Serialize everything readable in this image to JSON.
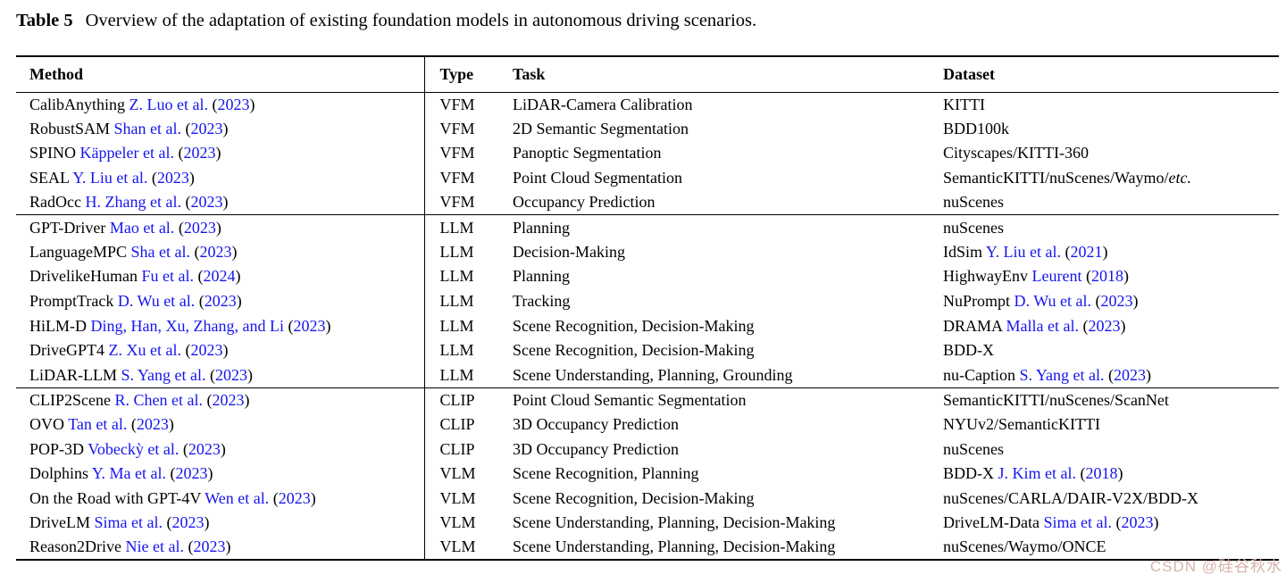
{
  "title": {
    "label": "Table 5",
    "text": "Overview of the adaptation of existing foundation models in autonomous driving scenarios."
  },
  "watermark": "CSDN @硅谷秋水",
  "colors": {
    "link": "#1515ef",
    "text": "#000000",
    "watermark": "#d8b2aa"
  },
  "table": {
    "headers": {
      "method": "Method",
      "type": "Type",
      "task": "Task",
      "dataset": "Dataset"
    },
    "groups": [
      {
        "rows": [
          {
            "method": {
              "name": "CalibAnything",
              "cite": "Z. Luo et al.",
              "year": "2023"
            },
            "type": "VFM",
            "task": "LiDAR-Camera Calibration",
            "dataset": {
              "name": "KITTI"
            }
          },
          {
            "method": {
              "name": "RobustSAM",
              "cite": "Shan et al.",
              "year": "2023"
            },
            "type": "VFM",
            "task": "2D Semantic Segmentation",
            "dataset": {
              "name": "BDD100k"
            }
          },
          {
            "method": {
              "name": "SPINO",
              "cite": "Käppeler et al.",
              "year": "2023"
            },
            "type": "VFM",
            "task": "Panoptic Segmentation",
            "dataset": {
              "name": "Cityscapes/KITTI-360"
            }
          },
          {
            "method": {
              "name": "SEAL",
              "cite": "Y. Liu et al.",
              "year": "2023"
            },
            "type": "VFM",
            "task": "Point Cloud Segmentation",
            "dataset": {
              "name": "SemanticKITTI/nuScenes/Waymo/",
              "italic_suffix": "etc."
            }
          },
          {
            "method": {
              "name": "RadOcc",
              "cite": "H. Zhang et al.",
              "year": "2023"
            },
            "type": "VFM",
            "task": "Occupancy Prediction",
            "dataset": {
              "name": "nuScenes"
            }
          }
        ]
      },
      {
        "rows": [
          {
            "method": {
              "name": "GPT-Driver",
              "cite": "Mao et al.",
              "year": "2023"
            },
            "type": "LLM",
            "task": "Planning",
            "dataset": {
              "name": "nuScenes"
            }
          },
          {
            "method": {
              "name": "LanguageMPC",
              "cite": "Sha et al.",
              "year": "2023"
            },
            "type": "LLM",
            "task": "Decision-Making",
            "dataset": {
              "name": "IdSim",
              "cite": "Y. Liu et al.",
              "year": "2021"
            }
          },
          {
            "method": {
              "name": "DrivelikeHuman",
              "cite": "Fu et al.",
              "year": "2024"
            },
            "type": "LLM",
            "task": "Planning",
            "dataset": {
              "name": "HighwayEnv",
              "cite": "Leurent",
              "year": "2018"
            }
          },
          {
            "method": {
              "name": "PromptTrack",
              "cite": "D. Wu et al.",
              "year": "2023"
            },
            "type": "LLM",
            "task": "Tracking",
            "dataset": {
              "name": "NuPrompt",
              "cite": "D. Wu et al.",
              "year": "2023"
            }
          },
          {
            "method": {
              "name": "HiLM-D",
              "cite": "Ding, Han, Xu, Zhang, and Li",
              "year": "2023"
            },
            "type": "LLM",
            "task": "Scene Recognition, Decision-Making",
            "dataset": {
              "name": "DRAMA",
              "cite": "Malla et al.",
              "year": "2023"
            }
          },
          {
            "method": {
              "name": "DriveGPT4",
              "cite": "Z. Xu et al.",
              "year": "2023"
            },
            "type": "LLM",
            "task": "Scene Recognition, Decision-Making",
            "dataset": {
              "name": "BDD-X"
            }
          },
          {
            "method": {
              "name": "LiDAR-LLM",
              "cite": "S. Yang et al.",
              "year": "2023"
            },
            "type": "LLM",
            "task": "Scene Understanding, Planning, Grounding",
            "dataset": {
              "name": "nu-Caption",
              "cite": "S. Yang et al.",
              "year": "2023"
            }
          }
        ]
      },
      {
        "rows": [
          {
            "method": {
              "name": "CLIP2Scene",
              "cite": "R. Chen et al.",
              "year": "2023"
            },
            "type": "CLIP",
            "task": "Point Cloud Semantic Segmentation",
            "dataset": {
              "name": "SemanticKITTI/nuScenes/ScanNet"
            }
          },
          {
            "method": {
              "name": "OVO",
              "cite": "Tan et al.",
              "year": "2023"
            },
            "type": "CLIP",
            "task": "3D Occupancy Prediction",
            "dataset": {
              "name": "NYUv2/SemanticKITTI"
            }
          },
          {
            "method": {
              "name": "POP-3D",
              "cite": "Vobeckỳ et al.",
              "year": "2023"
            },
            "type": "CLIP",
            "task": "3D Occupancy Prediction",
            "dataset": {
              "name": "nuScenes"
            }
          },
          {
            "method": {
              "name": "Dolphins",
              "cite": "Y. Ma et al.",
              "year": "2023"
            },
            "type": "VLM",
            "task": "Scene Recognition, Planning",
            "dataset": {
              "name": "BDD-X",
              "cite": "J. Kim et al.",
              "year": "2018"
            }
          },
          {
            "method": {
              "name": "On the Road with GPT-4V",
              "cite": "Wen et al.",
              "year": "2023"
            },
            "type": "VLM",
            "task": "Scene Recognition, Decision-Making",
            "dataset": {
              "name": "nuScenes/CARLA/DAIR-V2X/BDD-X"
            }
          },
          {
            "method": {
              "name": "DriveLM",
              "cite": "Sima et al.",
              "year": "2023"
            },
            "type": "VLM",
            "task": "Scene Understanding, Planning, Decision-Making",
            "dataset": {
              "name": "DriveLM-Data",
              "cite": "Sima et al.",
              "year": "2023"
            }
          },
          {
            "method": {
              "name": "Reason2Drive",
              "cite": "Nie et al.",
              "year": "2023"
            },
            "type": "VLM",
            "task": "Scene Understanding, Planning, Decision-Making",
            "dataset": {
              "name": "nuScenes/Waymo/ONCE"
            }
          }
        ]
      }
    ]
  }
}
